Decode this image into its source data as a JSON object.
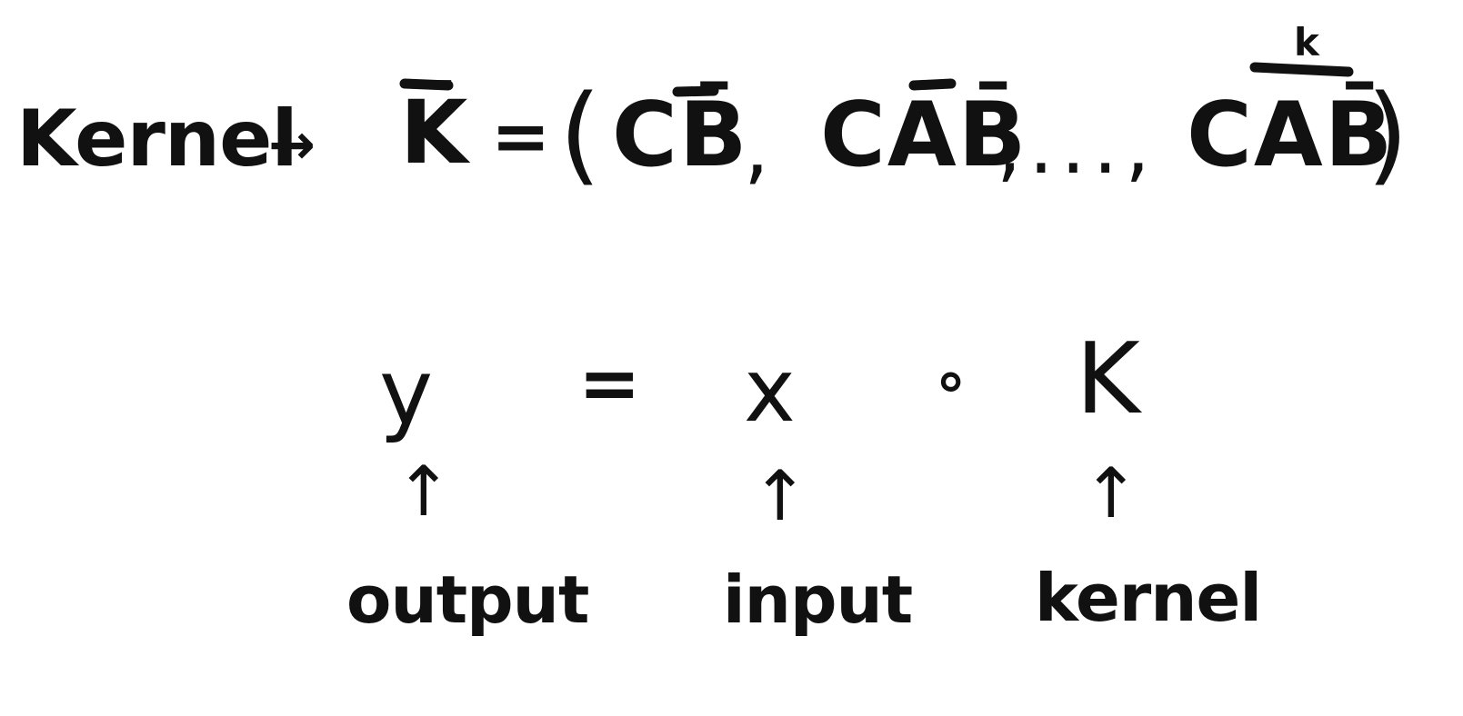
{
  "line1": {
    "word": "Kernel",
    "arrow": "→",
    "kbar": "K̄",
    "equals": "=",
    "open_paren": "(",
    "term1": "CB̄",
    "comma": ",",
    "term2": "CAB̄",
    "ellipsis": ",...,",
    "term3": "CAB̄",
    "superscript": "k",
    "close_paren": ")"
  },
  "line2": {
    "y": "y",
    "equals": "=",
    "x": "x",
    "conv": "∘",
    "k": "K"
  },
  "arrows": {
    "output_arrow": "↑",
    "input_arrow": "↑",
    "kernel_arrow": "↑"
  },
  "labels": {
    "output": "output",
    "input": "input",
    "kernel": "kernel"
  }
}
